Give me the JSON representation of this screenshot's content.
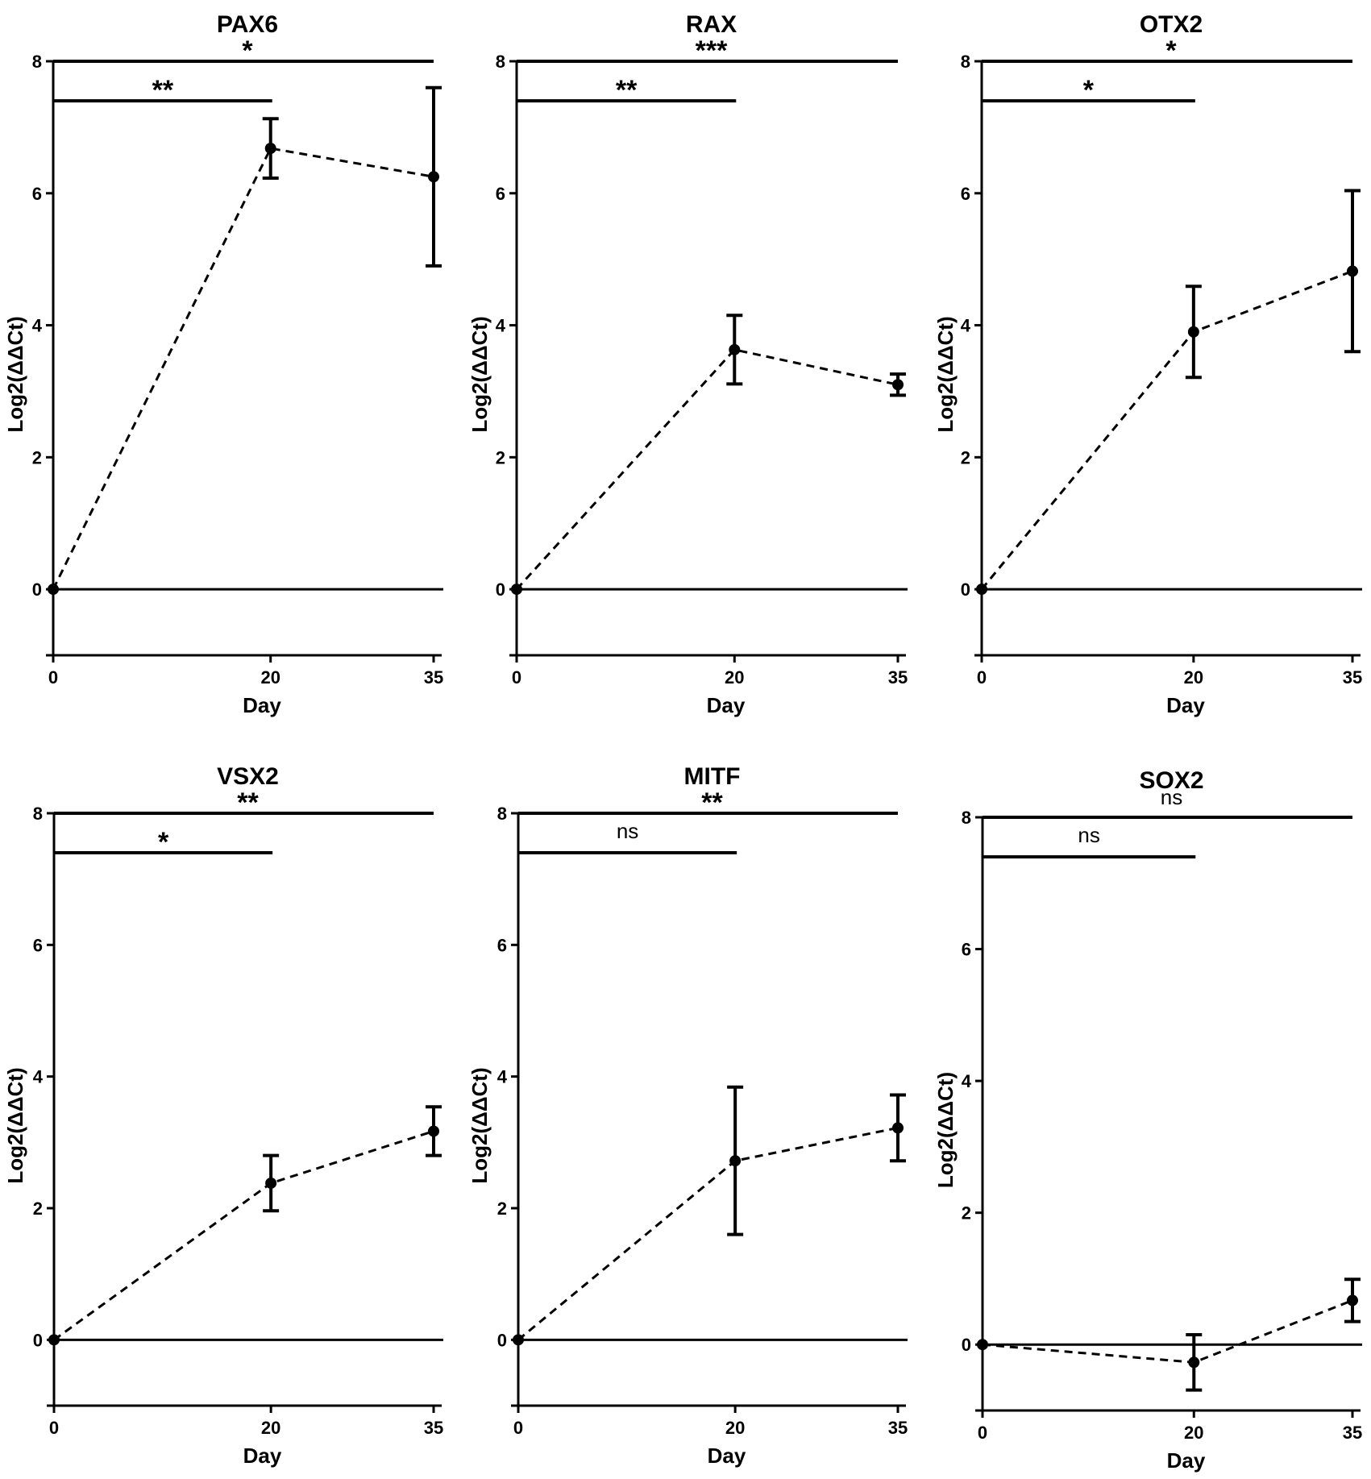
{
  "chart_data": [
    {
      "type": "line",
      "title": "PAX6",
      "xlabel": "Day",
      "ylabel": "Log2(ΔΔCt)",
      "x": [
        0,
        20,
        35
      ],
      "x_tick_labels": [
        "0",
        "20",
        "35"
      ],
      "y_tick_labels": [
        "0",
        "2",
        "4",
        "6",
        "8"
      ],
      "ylim": [
        -1,
        8
      ],
      "series": [
        {
          "values": [
            0,
            6.68,
            6.25
          ],
          "error": [
            0,
            0.45,
            1.35
          ]
        }
      ],
      "brackets": [
        {
          "from": 0,
          "to": 35,
          "label": "*",
          "y": 8.0
        },
        {
          "from": 0,
          "to": 20,
          "label": "**",
          "y": 7.4
        }
      ]
    },
    {
      "type": "line",
      "title": "RAX",
      "xlabel": "Day",
      "ylabel": "Log2(ΔΔCt)",
      "x": [
        0,
        20,
        35
      ],
      "x_tick_labels": [
        "0",
        "20",
        "35"
      ],
      "y_tick_labels": [
        "0",
        "2",
        "4",
        "6",
        "8"
      ],
      "ylim": [
        -1,
        8
      ],
      "series": [
        {
          "values": [
            0,
            3.63,
            3.1
          ],
          "error": [
            0,
            0.52,
            0.16
          ]
        }
      ],
      "brackets": [
        {
          "from": 0,
          "to": 35,
          "label": "***",
          "y": 8.0
        },
        {
          "from": 0,
          "to": 20,
          "label": "**",
          "y": 7.4
        }
      ]
    },
    {
      "type": "line",
      "title": "OTX2",
      "xlabel": "Day",
      "ylabel": "Log2(ΔΔCt)",
      "x": [
        0,
        20,
        35
      ],
      "x_tick_labels": [
        "0",
        "20",
        "35"
      ],
      "y_tick_labels": [
        "0",
        "2",
        "4",
        "6",
        "8"
      ],
      "ylim": [
        -1,
        8
      ],
      "series": [
        {
          "values": [
            0,
            3.9,
            4.82
          ],
          "error": [
            0,
            0.69,
            1.22
          ]
        }
      ],
      "brackets": [
        {
          "from": 0,
          "to": 35,
          "label": "*",
          "y": 8.0
        },
        {
          "from": 0,
          "to": 20,
          "label": "*",
          "y": 7.4
        }
      ]
    },
    {
      "type": "line",
      "title": "VSX2",
      "xlabel": "Day",
      "ylabel": "Log2(ΔΔCt)",
      "x": [
        0,
        20,
        35
      ],
      "x_tick_labels": [
        "0",
        "20",
        "35"
      ],
      "y_tick_labels": [
        "0",
        "2",
        "4",
        "6",
        "8"
      ],
      "ylim": [
        -1,
        8
      ],
      "series": [
        {
          "values": [
            0,
            2.38,
            3.17
          ],
          "error": [
            0,
            0.42,
            0.37
          ]
        }
      ],
      "brackets": [
        {
          "from": 0,
          "to": 35,
          "label": "**",
          "y": 8.0
        },
        {
          "from": 0,
          "to": 20,
          "label": "*",
          "y": 7.4
        }
      ]
    },
    {
      "type": "line",
      "title": "MITF",
      "xlabel": "Day",
      "ylabel": "Log2(ΔΔCt)",
      "x": [
        0,
        20,
        35
      ],
      "x_tick_labels": [
        "0",
        "20",
        "35"
      ],
      "y_tick_labels": [
        "0",
        "2",
        "4",
        "6",
        "8"
      ],
      "ylim": [
        -1,
        8
      ],
      "series": [
        {
          "values": [
            0,
            2.72,
            3.22
          ],
          "error": [
            0,
            1.12,
            0.5
          ]
        }
      ],
      "brackets": [
        {
          "from": 0,
          "to": 35,
          "label": "**",
          "y": 8.0
        },
        {
          "from": 0,
          "to": 20,
          "label": "ns",
          "y": 7.4
        }
      ]
    },
    {
      "type": "line",
      "title": "SOX2",
      "xlabel": "Day",
      "ylabel": "Log2(ΔΔCt)",
      "x": [
        0,
        20,
        35
      ],
      "x_tick_labels": [
        "0",
        "20",
        "35"
      ],
      "y_tick_labels": [
        "0",
        "2",
        "4",
        "6",
        "8"
      ],
      "ylim": [
        -1,
        8
      ],
      "series": [
        {
          "values": [
            0,
            -0.27,
            0.67
          ],
          "error": [
            0,
            0.42,
            0.32
          ]
        }
      ],
      "brackets": [
        {
          "from": 0,
          "to": 35,
          "label": "ns",
          "y": 8.0
        },
        {
          "from": 0,
          "to": 20,
          "label": "ns",
          "y": 7.4
        }
      ]
    }
  ]
}
